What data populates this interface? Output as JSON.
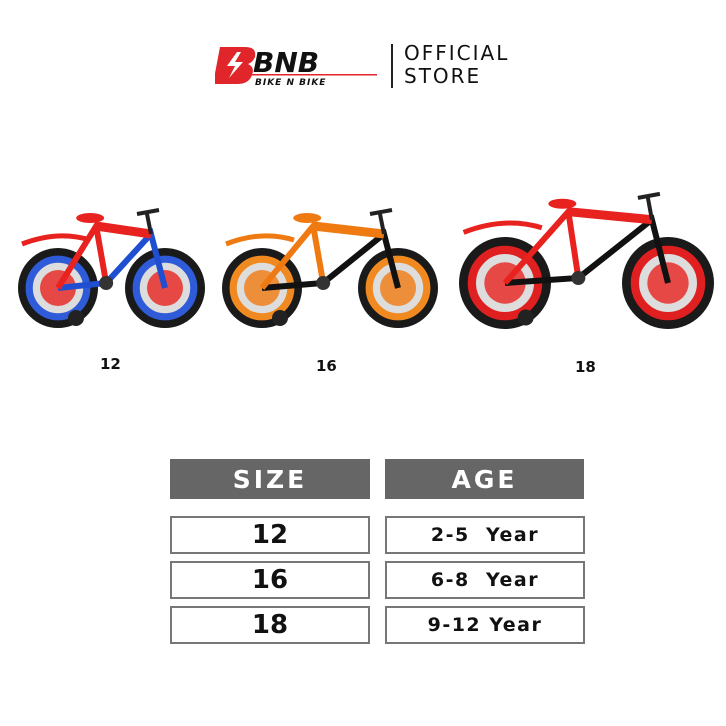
{
  "brand": {
    "logo_text": "BNB",
    "logo_subtext": "BIKE N BIKE",
    "store_label_line1": "OFFICIAL",
    "store_label_line2": "STORE",
    "accent": "#e0262a"
  },
  "bikes": [
    {
      "size": "12",
      "frame_color": "#1f4fd0",
      "accent_color": "#e8231f",
      "rim_color": "#2f5bd8"
    },
    {
      "size": "16",
      "frame_color": "#111111",
      "accent_color": "#f07a12",
      "rim_color": "#f08a20"
    },
    {
      "size": "18",
      "frame_color": "#111111",
      "accent_color": "#e8231f",
      "rim_color": "#e02020"
    }
  ],
  "table": {
    "headers": [
      "SIZE",
      "AGE"
    ],
    "rows": [
      {
        "size": "12",
        "age": "2-5  Year"
      },
      {
        "size": "16",
        "age": "6-8  Year"
      },
      {
        "size": "18",
        "age": "9-12 Year"
      }
    ],
    "header_color": "#666666"
  }
}
